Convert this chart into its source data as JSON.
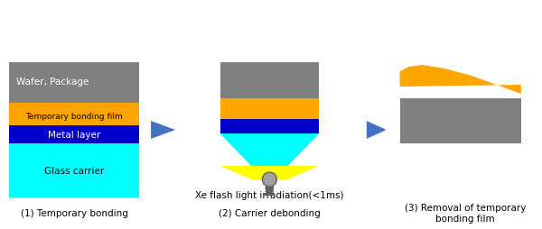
{
  "bg_color": "#ffffff",
  "colors": {
    "gray": "#808080",
    "orange": "#FFA500",
    "blue": "#0000CC",
    "cyan": "#00FFFF",
    "yellow": "#FFFF00",
    "arrow": "#4472C4",
    "light_gray": "#A0A0A0",
    "dark_gray": "#606060"
  },
  "labels": {
    "step1_title": "(1) Temporary bonding",
    "step2_title": "(2) Carrier debonding",
    "step3_title": "(3) Removal of temporary\nbonding film",
    "xe_label": "Xe flash light irradiation(<1ms)",
    "wafer": "Wafer, Package",
    "tbf": "Temporary bonding film",
    "metal": "Metal layer",
    "glass": "Glass carrier"
  }
}
